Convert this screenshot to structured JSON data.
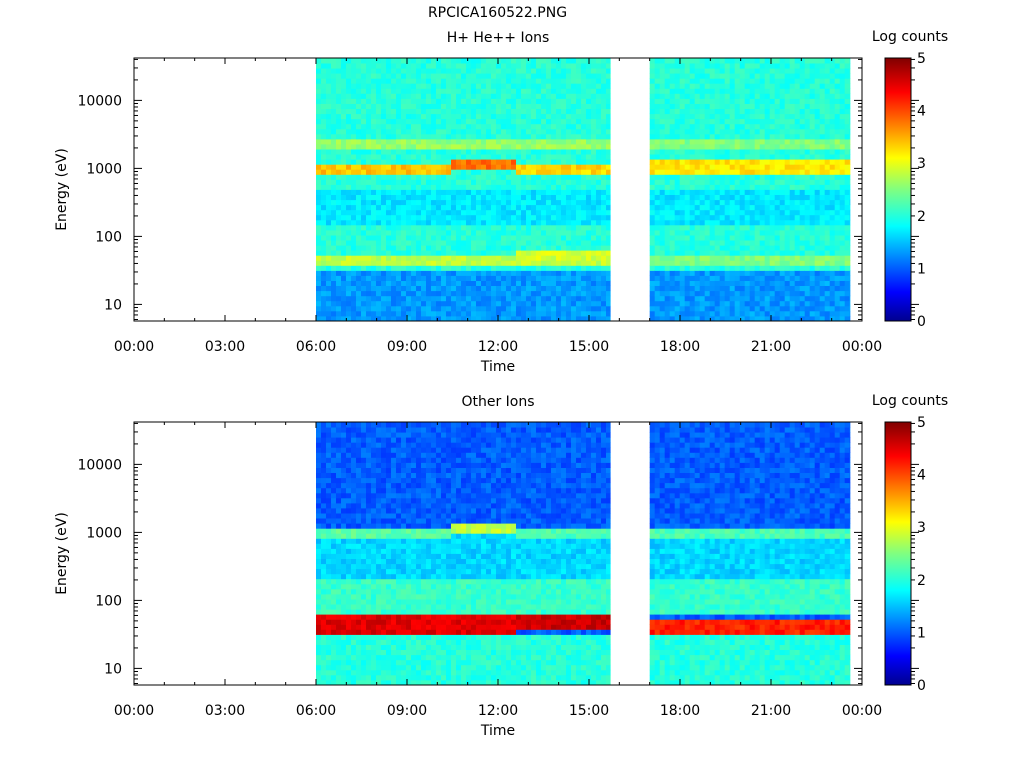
{
  "page": {
    "title": "RPCICA160522.PNG"
  },
  "chart_data": [
    {
      "type": "heatmap",
      "title": "H+ He++ Ions",
      "xlabel": "Time",
      "ylabel": "Energy (eV)",
      "x_ticks": [
        "00:00",
        "03:00",
        "06:00",
        "09:00",
        "12:00",
        "15:00",
        "18:00",
        "21:00",
        "00:00"
      ],
      "xlim_hours": [
        0,
        24
      ],
      "y_scale": "log",
      "y_ticks": [
        10,
        100,
        1000,
        10000
      ],
      "y_tick_labels": [
        "10",
        "100",
        "1000",
        "10000"
      ],
      "ylim": [
        5.7,
        42000
      ],
      "colorbar": {
        "label": "Log counts",
        "min": 0,
        "max": 5,
        "ticks": [
          "0",
          "1",
          "2",
          "3",
          "4",
          "5"
        ]
      },
      "data_intervals_hours": [
        [
          6.0,
          15.7
        ],
        [
          17.0,
          23.6
        ]
      ],
      "background_level": 2.0,
      "bands": [
        {
          "time_hours": [
            6.0,
            10.5
          ],
          "energy_eV": [
            800,
            1250
          ],
          "level": 3.4
        },
        {
          "time_hours": [
            10.5,
            12.6
          ],
          "energy_eV": [
            1050,
            1450
          ],
          "level": 3.8
        },
        {
          "time_hours": [
            12.6,
            15.7
          ],
          "energy_eV": [
            800,
            1250
          ],
          "level": 3.3
        },
        {
          "time_hours": [
            17.0,
            23.6
          ],
          "energy_eV": [
            850,
            1300
          ],
          "level": 3.2
        },
        {
          "time_hours": [
            6.0,
            15.7
          ],
          "energy_eV": [
            1800,
            2500
          ],
          "level": 2.6
        },
        {
          "time_hours": [
            17.0,
            23.6
          ],
          "energy_eV": [
            1800,
            2500
          ],
          "level": 2.5
        },
        {
          "time_hours": [
            6.0,
            15.7
          ],
          "energy_eV": [
            150,
            500
          ],
          "level": 1.7
        },
        {
          "time_hours": [
            17.0,
            23.6
          ],
          "energy_eV": [
            150,
            500
          ],
          "level": 1.7
        },
        {
          "time_hours": [
            6.0,
            15.7
          ],
          "energy_eV": [
            38,
            55
          ],
          "level": 2.8
        },
        {
          "time_hours": [
            12.6,
            15.7
          ],
          "energy_eV": [
            42,
            58
          ],
          "level": 2.9
        },
        {
          "time_hours": [
            17.0,
            23.6
          ],
          "energy_eV": [
            38,
            52
          ],
          "level": 2.5
        },
        {
          "time_hours": [
            6.0,
            15.7
          ],
          "energy_eV": [
            5.7,
            33
          ],
          "level": 1.3
        },
        {
          "time_hours": [
            17.0,
            23.6
          ],
          "energy_eV": [
            5.7,
            33
          ],
          "level": 1.3
        }
      ]
    },
    {
      "type": "heatmap",
      "title": "Other Ions",
      "xlabel": "Time",
      "ylabel": "Energy (eV)",
      "x_ticks": [
        "00:00",
        "03:00",
        "06:00",
        "09:00",
        "12:00",
        "15:00",
        "18:00",
        "21:00",
        "00:00"
      ],
      "xlim_hours": [
        0,
        24
      ],
      "y_scale": "log",
      "y_ticks": [
        10,
        100,
        1000,
        10000
      ],
      "y_tick_labels": [
        "10",
        "100",
        "1000",
        "10000"
      ],
      "ylim": [
        5.7,
        42000
      ],
      "colorbar": {
        "label": "Log counts",
        "min": 0,
        "max": 5,
        "ticks": [
          "0",
          "1",
          "2",
          "3",
          "4",
          "5"
        ]
      },
      "data_intervals_hours": [
        [
          6.0,
          15.7
        ],
        [
          17.0,
          23.6
        ]
      ],
      "background_level": 1.0,
      "bands": [
        {
          "time_hours": [
            6.0,
            15.7
          ],
          "energy_eV": [
            220,
            1000
          ],
          "level": 1.6
        },
        {
          "time_hours": [
            17.0,
            23.6
          ],
          "energy_eV": [
            220,
            1000
          ],
          "level": 1.6
        },
        {
          "time_hours": [
            6.0,
            10.5
          ],
          "energy_eV": [
            850,
            1250
          ],
          "level": 2.3
        },
        {
          "time_hours": [
            10.5,
            12.6
          ],
          "energy_eV": [
            1050,
            1400
          ],
          "level": 2.8
        },
        {
          "time_hours": [
            12.6,
            15.7
          ],
          "energy_eV": [
            850,
            1250
          ],
          "level": 2.2
        },
        {
          "time_hours": [
            17.0,
            23.6
          ],
          "energy_eV": [
            850,
            1250
          ],
          "level": 2.2
        },
        {
          "time_hours": [
            6.0,
            15.7
          ],
          "energy_eV": [
            60,
            200
          ],
          "level": 2.1
        },
        {
          "time_hours": [
            17.0,
            23.6
          ],
          "energy_eV": [
            60,
            200
          ],
          "level": 2.1
        },
        {
          "time_hours": [
            6.0,
            15.7
          ],
          "energy_eV": [
            5.7,
            33
          ],
          "level": 2.0
        },
        {
          "time_hours": [
            17.0,
            23.6
          ],
          "energy_eV": [
            5.7,
            33
          ],
          "level": 2.0
        },
        {
          "time_hours": [
            6.0,
            12.6
          ],
          "energy_eV": [
            33,
            60
          ],
          "level": 4.5
        },
        {
          "time_hours": [
            12.6,
            15.7
          ],
          "energy_eV": [
            38,
            62
          ],
          "level": 4.6
        },
        {
          "time_hours": [
            17.0,
            23.6
          ],
          "energy_eV": [
            30,
            50
          ],
          "level": 4.2
        }
      ]
    }
  ]
}
